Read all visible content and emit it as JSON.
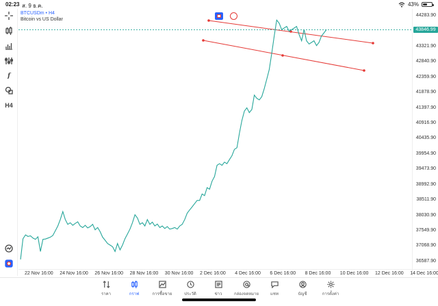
{
  "status_bar": {
    "time": "02:23",
    "date": "ส. 9 ธ.ค.",
    "battery": "43%",
    "battery_level": 0.43
  },
  "chart_header": {
    "symbol": "BTCUSDm • H4",
    "description": "Bitcoin vs US Dollar"
  },
  "left_toolbar": {
    "timeframe": "H4",
    "draw_label": "f"
  },
  "price_scale": {
    "current_price": "43846.99",
    "labels": [
      "44283.90",
      "43321.90",
      "42840.90",
      "42359.90",
      "41878.90",
      "41397.90",
      "40916.90",
      "40435.90",
      "39954.90",
      "39473.90",
      "38992.90",
      "38511.90",
      "38030.90",
      "37549.90",
      "37068.90",
      "36587.90"
    ]
  },
  "time_axis": {
    "labels": [
      "22 Nov 16:00",
      "24 Nov 16:00",
      "26 Nov 16:00",
      "28 Nov 16:00",
      "30 Nov 16:00",
      "2 Dec 16:00",
      "4 Dec 16:00",
      "6 Dec 16:00",
      "8 Dec 16:00",
      "10 Dec 16:00",
      "12 Dec 16:00",
      "14 Dec 16:00"
    ]
  },
  "bottom_nav": {
    "items": [
      {
        "label": "ราคา",
        "icon": "quotes-icon"
      },
      {
        "label": "กราฟ",
        "icon": "chart-icon"
      },
      {
        "label": "การซื้อขาย",
        "icon": "trade-icon"
      },
      {
        "label": "ประวัติ",
        "icon": "history-icon"
      },
      {
        "label": "ข่าว",
        "icon": "news-icon"
      },
      {
        "label": "กล่องจดหมาย",
        "icon": "mailbox-icon"
      },
      {
        "label": "แชท",
        "icon": "chat-icon"
      },
      {
        "label": "บัญชี",
        "icon": "account-icon"
      },
      {
        "label": "การตั้งค่า",
        "icon": "settings-icon"
      }
    ]
  },
  "colors": {
    "line": "#26a69a",
    "trendline": "#e53935",
    "accent": "#2962ff"
  },
  "chart_data": {
    "type": "line",
    "ylim": [
      36350,
      44500
    ],
    "xlim": [
      "21 Nov 16:00",
      "14 Dec 16:00"
    ],
    "y": [
      36650,
      37300,
      37420,
      37370,
      37390,
      37320,
      37280,
      37360,
      36900,
      37280,
      37290,
      37320,
      37350,
      37400,
      37550,
      37700,
      37900,
      38150,
      37900,
      37750,
      37800,
      37720,
      37780,
      37830,
      37700,
      37650,
      37720,
      37640,
      37680,
      37750,
      37580,
      37650,
      37520,
      37350,
      37250,
      37150,
      37100,
      37050,
      36900,
      37150,
      36950,
      37100,
      37300,
      37450,
      37600,
      37800,
      38050,
      37950,
      37750,
      37800,
      37700,
      37900,
      37750,
      37820,
      37700,
      37760,
      37650,
      37700,
      37620,
      37680,
      37600,
      37620,
      37650,
      37600,
      37700,
      37750,
      37900,
      38100,
      38200,
      38300,
      38400,
      38500,
      38500,
      38700,
      38650,
      38900,
      38850,
      39100,
      39250,
      39600,
      39650,
      39600,
      39700,
      39650,
      39780,
      39900,
      40100,
      40150,
      40600,
      41000,
      41300,
      41400,
      41250,
      41350,
      41800,
      41700,
      41650,
      41750,
      42000,
      42300,
      42600,
      43100,
      43650,
      44150,
      44050,
      43850,
      43900,
      43950,
      43800,
      43850,
      43900,
      43950,
      43700,
      43500,
      43850,
      43500,
      43400,
      43450,
      43500,
      43350,
      43450,
      43650,
      43750,
      43850
    ]
  }
}
